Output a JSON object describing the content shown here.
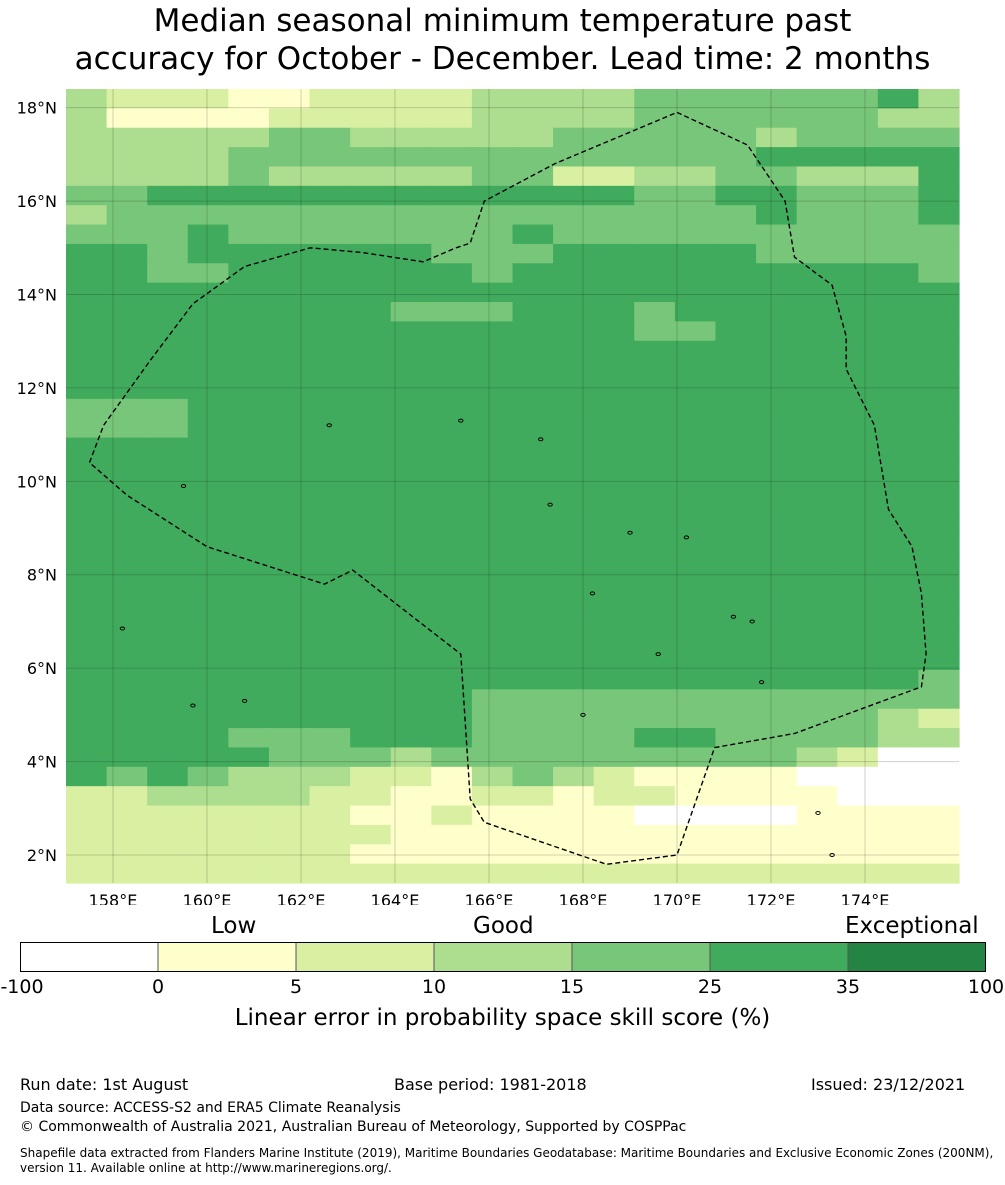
{
  "title_line1": "Median seasonal minimum temperature past",
  "title_line2": "accuracy for October - December. Lead time: 2 months",
  "map": {
    "lon_range": [
      157,
      176
    ],
    "lat_range": [
      1.4,
      18.4
    ],
    "lon_ticks": [
      "158°E",
      "160°E",
      "162°E",
      "164°E",
      "166°E",
      "168°E",
      "170°E",
      "172°E",
      "174°E"
    ],
    "lat_ticks": [
      "18°N",
      "16°N",
      "14°N",
      "12°N",
      "10°N",
      "8°N",
      "6°N",
      "4°N",
      "2°N"
    ],
    "cell_rows_top_to_bottom": [
      "3222112222333344444453",
      "3111122222333344444433",
      "3333344333334444434444",
      "3333444444444444455555",
      "3333433333442233443335",
      "4455555555555544554445",
      "3444444444444444454445",
      "4445444444454444444444",
      "5545555554445555544444",
      "5544555555455555555554",
      "5555555555555555555555",
      "5555555544455545555555",
      "5555555555555544555555",
      "5555555555555555555555",
      "5555555555555555555555",
      "5555555555555555555555",
      "4445555555555555555555",
      "4445555555555555555555",
      "5555555555555555555555",
      "5555555555555555555555",
      "5555555555555555555555",
      "5555555555555555555555",
      "5555555555555555555555",
      "5555555555555555555555",
      "5555555555555555555555",
      "5555555555555555555555",
      "5555555555555555555555",
      "5555555555555555555555",
      "5555555555555555555555",
      "5555555555555555555555",
      "5555555555555555555554",
      "5555555555444444444444",
      "5555555555444444444432",
      "5555444555444455444433",
      "5555544434444444443200",
      "5454333221343211110000",
      "2233332211221221111000",
      "2222222112111100001111",
      "2222222211111111111111",
      "2222222111111111111111",
      "2222222222222222222222"
    ],
    "colors": [
      "#ffffff",
      "#ffffcc",
      "#d9f0a3",
      "#addd8e",
      "#78c679",
      "#41ab5d",
      "#238443"
    ],
    "boundary_polygon": [
      [
        170.0,
        17.9
      ],
      [
        171.5,
        17.2
      ],
      [
        172.3,
        16.0
      ],
      [
        172.5,
        14.8
      ],
      [
        173.3,
        14.2
      ],
      [
        173.6,
        13.1
      ],
      [
        173.6,
        12.4
      ],
      [
        174.2,
        11.2
      ],
      [
        174.5,
        9.4
      ],
      [
        175.0,
        8.6
      ],
      [
        175.2,
        7.6
      ],
      [
        175.3,
        6.3
      ],
      [
        175.2,
        5.6
      ],
      [
        172.5,
        4.6
      ],
      [
        170.8,
        4.3
      ],
      [
        170.0,
        2.0
      ],
      [
        168.5,
        1.8
      ],
      [
        165.9,
        2.7
      ],
      [
        165.6,
        3.2
      ],
      [
        165.4,
        6.3
      ],
      [
        163.1,
        8.1
      ],
      [
        162.5,
        7.8
      ],
      [
        160.0,
        8.6
      ],
      [
        158.3,
        9.7
      ],
      [
        157.5,
        10.4
      ],
      [
        157.8,
        11.2
      ],
      [
        158.8,
        12.6
      ],
      [
        159.7,
        13.8
      ],
      [
        160.8,
        14.6
      ],
      [
        162.2,
        15.0
      ],
      [
        163.3,
        14.9
      ],
      [
        164.6,
        14.7
      ],
      [
        165.3,
        15.0
      ],
      [
        165.6,
        15.1
      ],
      [
        165.9,
        16.0
      ],
      [
        167.4,
        16.8
      ],
      [
        170.0,
        17.9
      ]
    ]
  },
  "categories": {
    "low": "Low",
    "good": "Good",
    "exceptional": "Exceptional"
  },
  "colorbar": {
    "ticks": [
      "-100",
      "0",
      "5",
      "10",
      "15",
      "25",
      "35",
      "100"
    ],
    "colors": [
      "#ffffff",
      "#ffffcc",
      "#d9f0a3",
      "#addd8e",
      "#78c679",
      "#41ab5d",
      "#238443"
    ],
    "title": "Linear error in probability space skill score (%)"
  },
  "footer": {
    "run_date": "Run date: 1st August",
    "base_period": "Base period: 1981-2018",
    "issued": "Issued: 23/12/2021",
    "data_source": "Data source: ACCESS-S2 and ERA5 Climate Reanalysis",
    "copyright": "© Commonwealth of Australia 2021, Australian Bureau of Meteorology, Supported by COSPPac",
    "shapefile_line1": "Shapefile data extracted from Flanders Marine Institute (2019), Maritime Boundaries Geodatabase: Maritime Boundaries and Exclusive Economic Zones (200NM),",
    "shapefile_line2": "version 11. Available online at http://www.marineregions.org/."
  }
}
